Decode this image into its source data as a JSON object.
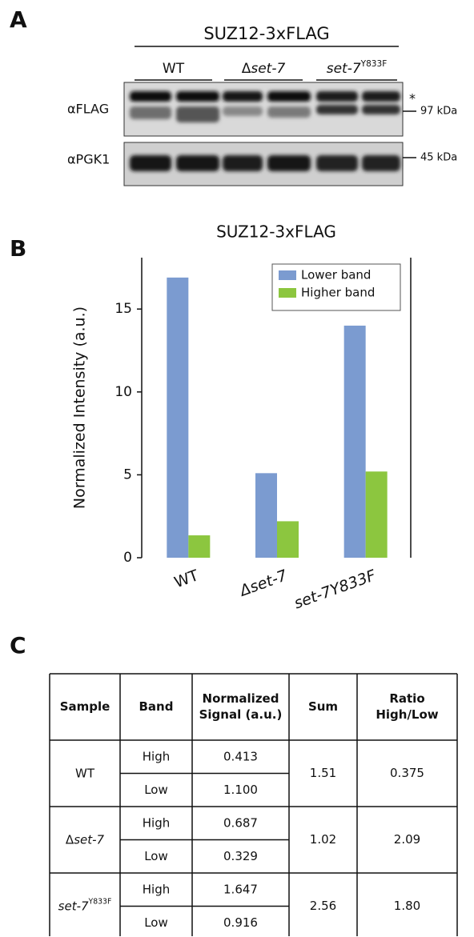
{
  "panel_a": {
    "label": "A",
    "header": "SUZ12-3xFLAG",
    "groups": [
      [
        {
          "text": "WT"
        }
      ],
      [
        {
          "text": "Δ"
        },
        {
          "text": "set-7",
          "italic": true
        }
      ],
      [
        {
          "text": "set-7",
          "italic": true
        },
        {
          "text": "Y833F",
          "sup": true
        }
      ]
    ],
    "blots": [
      {
        "antibody": "αFLAG",
        "size": "97 kDa",
        "note": "*"
      },
      {
        "antibody": "αPGK1",
        "size": "45 kDa"
      }
    ]
  },
  "chart_data": {
    "type": "bar",
    "panel_label": "B",
    "title": "SUZ12-3xFLAG",
    "y_label": "Normalized Intensity (a.u.)",
    "categories": [
      "WT",
      "Δset-7",
      "set-7Y833F"
    ],
    "series": [
      {
        "name": "Lower band",
        "color": "#7b9bd0",
        "values": [
          16.9,
          5.1,
          14.0
        ]
      },
      {
        "name": "Higher band",
        "color": "#8cc63f",
        "values": [
          1.35,
          2.2,
          5.2
        ]
      }
    ],
    "ylim": [
      0,
      18.1
    ],
    "yticks": [
      0,
      5,
      10,
      15
    ],
    "legend": "upper right"
  },
  "panel_c": {
    "label": "C",
    "header": [
      [
        "Sample"
      ],
      [
        "Band"
      ],
      [
        "Normalized",
        "Signal (a.u.)"
      ],
      [
        "Sum"
      ],
      [
        "Ratio",
        "High/Low"
      ]
    ],
    "groups": [
      {
        "sample": [
          {
            "text": "WT"
          }
        ],
        "rows": [
          [
            "High",
            "0.413"
          ],
          [
            "Low",
            "1.100"
          ]
        ],
        "sum": "1.51",
        "ratio": "0.375"
      },
      {
        "sample": [
          {
            "text": "Δ"
          },
          {
            "text": "set-7",
            "italic": true
          }
        ],
        "rows": [
          [
            "High",
            "0.687"
          ],
          [
            "Low",
            "0.329"
          ]
        ],
        "sum": "1.02",
        "ratio": "2.09"
      },
      {
        "sample": [
          {
            "text": "set-7",
            "italic": true
          },
          {
            "text": "Y833F",
            "sup": true
          }
        ],
        "rows": [
          [
            "High",
            "1.647"
          ],
          [
            "Low",
            "0.916"
          ]
        ],
        "sum": "2.56",
        "ratio": "1.80"
      }
    ]
  }
}
